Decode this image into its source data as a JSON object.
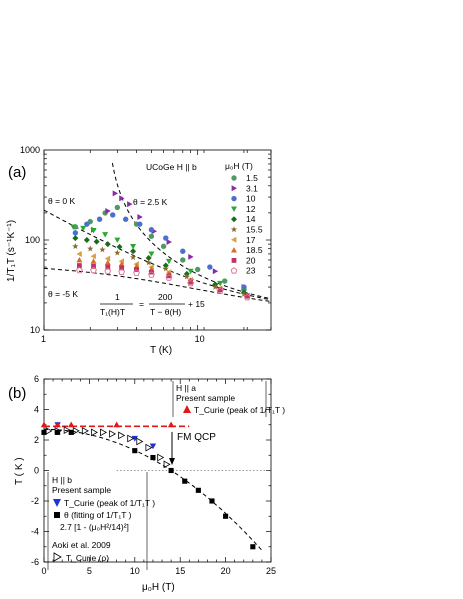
{
  "chart_data": [
    {
      "type": "scatter",
      "panel_label": "(a)",
      "title": "UCoGe  H || b",
      "xlabel": "T (K)",
      "ylabel": "1/T₁T (s⁻¹K⁻¹)",
      "xscale": "log",
      "yscale": "log",
      "xlim": [
        1,
        30
      ],
      "ylim": [
        10,
        1000
      ],
      "x_ticks": [
        "1",
        "10"
      ],
      "y_ticks": [
        "10",
        "100",
        "1000"
      ],
      "legend_title": "μ₀H (T)",
      "legend_position": "top-right",
      "formula": {
        "lhs": "1",
        "lhs_den": "T₁(H)T",
        "rhs_num": "200",
        "rhs_den": "T − θ(H)",
        "tail": "+ 15"
      },
      "annotations": [
        "θ = 0 K",
        "θ = 2.5 K",
        "θ = -5 K"
      ],
      "fit_curves": [
        {
          "theta": 0,
          "label": "θ = 0 K"
        },
        {
          "theta": 2.5,
          "label": "θ = 2.5 K"
        },
        {
          "theta": -5,
          "label": "θ = -5 K"
        }
      ],
      "series": [
        {
          "name": "1.5",
          "marker": "circle",
          "color": "#4f9a63",
          "points": [
            [
              1.6,
              140
            ],
            [
              2.0,
              160
            ],
            [
              2.5,
              200
            ],
            [
              3.0,
              230
            ],
            [
              4,
              150
            ],
            [
              5,
              110
            ],
            [
              6,
              85
            ],
            [
              8,
              60
            ],
            [
              10,
              47
            ],
            [
              15,
              35
            ],
            [
              20,
              28
            ]
          ]
        },
        {
          "name": "3.1",
          "marker": "tri-right",
          "color": "#8a2aa8",
          "points": [
            [
              2.1,
              130
            ],
            [
              2.6,
              210
            ],
            [
              2.9,
              330
            ],
            [
              3.2,
              290
            ],
            [
              3.6,
              250
            ],
            [
              4.2,
              180
            ],
            [
              5.2,
              125
            ],
            [
              6.5,
              95
            ],
            [
              9,
              65
            ],
            [
              13,
              45
            ],
            [
              20,
              30
            ]
          ]
        },
        {
          "name": "10",
          "marker": "circle",
          "color": "#4a6fd0",
          "points": [
            [
              1.6,
              120
            ],
            [
              1.9,
              150
            ],
            [
              2.3,
              170
            ],
            [
              2.8,
              190
            ],
            [
              3.4,
              170
            ],
            [
              4.2,
              150
            ],
            [
              5,
              130
            ],
            [
              6.2,
              105
            ],
            [
              8,
              75
            ],
            [
              12,
              50
            ],
            [
              20,
              30
            ]
          ]
        },
        {
          "name": "12",
          "marker": "tri-down",
          "color": "#2aa830",
          "points": [
            [
              1.55,
              140
            ],
            [
              1.8,
              135
            ],
            [
              2.1,
              128
            ],
            [
              2.5,
              115
            ],
            [
              3,
              100
            ],
            [
              3.8,
              85
            ],
            [
              5,
              70
            ],
            [
              6.5,
              58
            ],
            [
              9,
              45
            ],
            [
              14,
              33
            ],
            [
              20,
              27
            ]
          ]
        },
        {
          "name": "14",
          "marker": "diamond",
          "color": "#1a6b1a",
          "points": [
            [
              1.6,
              105
            ],
            [
              1.9,
              100
            ],
            [
              2.2,
              96
            ],
            [
              2.6,
              90
            ],
            [
              3.1,
              84
            ],
            [
              3.8,
              75
            ],
            [
              4.8,
              63
            ],
            [
              6.2,
              52
            ],
            [
              8.5,
              42
            ],
            [
              13,
              32
            ],
            [
              20,
              26
            ]
          ]
        },
        {
          "name": "15.5",
          "marker": "star",
          "color": "#8a6a2a",
          "points": [
            [
              1.6,
              85
            ],
            [
              2.0,
              80
            ],
            [
              2.4,
              78
            ],
            [
              3.0,
              72
            ],
            [
              3.8,
              64
            ],
            [
              4.8,
              56
            ],
            [
              6.2,
              48
            ],
            [
              8.5,
              39
            ],
            [
              13,
              30
            ],
            [
              20,
              25
            ]
          ]
        },
        {
          "name": "17",
          "marker": "tri-left",
          "color": "#d8a040",
          "points": [
            [
              1.7,
              70
            ],
            [
              2.1,
              66
            ],
            [
              2.6,
              62
            ],
            [
              3.2,
              58
            ],
            [
              4.0,
              54
            ],
            [
              5,
              50
            ],
            [
              6.5,
              44
            ],
            [
              9,
              36
            ],
            [
              14,
              29
            ],
            [
              21,
              24
            ]
          ]
        },
        {
          "name": "18.5",
          "marker": "triangle",
          "color": "#d86a2a",
          "points": [
            [
              1.7,
              60
            ],
            [
              2.1,
              58
            ],
            [
              2.6,
              56
            ],
            [
              3.2,
              54
            ],
            [
              4,
              51
            ],
            [
              5,
              47
            ],
            [
              6.5,
              42
            ],
            [
              9,
              35
            ],
            [
              14,
              28
            ],
            [
              21,
              24
            ]
          ]
        },
        {
          "name": "20",
          "marker": "square",
          "color": "#c0306a",
          "points": [
            [
              1.7,
              52
            ],
            [
              2.1,
              51
            ],
            [
              2.6,
              50
            ],
            [
              3.2,
              49
            ],
            [
              4,
              47
            ],
            [
              5,
              44
            ],
            [
              6.5,
              40
            ],
            [
              9,
              34
            ],
            [
              14,
              28
            ],
            [
              21,
              24
            ]
          ]
        },
        {
          "name": "23",
          "marker": "pentagon",
          "color": "#e07090",
          "points": [
            [
              1.7,
              46
            ],
            [
              2.1,
              46
            ],
            [
              2.6,
              45
            ],
            [
              3.2,
              44
            ],
            [
              4,
              43
            ],
            [
              5,
              41
            ],
            [
              6.5,
              38
            ],
            [
              9,
              33
            ],
            [
              14,
              27
            ],
            [
              21,
              23
            ]
          ]
        }
      ]
    },
    {
      "type": "scatter",
      "panel_label": "(b)",
      "xlabel": "μ₀H (T)",
      "ylabel": "T ( K )",
      "xlim": [
        0,
        25
      ],
      "ylim": [
        -6,
        6
      ],
      "x_ticks": [
        "0",
        "5",
        "10",
        "15",
        "20",
        "25"
      ],
      "y_ticks": [
        "-6",
        "-4",
        "-2",
        "0",
        "2",
        "4",
        "6"
      ],
      "fm_qcp_label": "FM QCP",
      "fm_qcp_H": 14,
      "fit_label": "2.7 [1 - (μ₀H²/14)²]",
      "legend_b": {
        "title": "H || b",
        "subtitle": "Present sample",
        "entry1": "T_Curie (peak of 1/T₁T )",
        "entry2": "θ (fitting of 1/T₁T )",
        "entry3": "2.7 [1 - (μ₀H²/14)²]",
        "group2_title": "Aoki et al. 2009",
        "entry4": "T_Curie (ρ)"
      },
      "legend_a": {
        "title": "H || a",
        "subtitle": "Present sample",
        "entry1": "T_Curie (peak of 1/T₁T )"
      },
      "series": [
        {
          "name": "T_Curie (peak of 1/T1T), H||b",
          "marker": "tri-down",
          "color": "#2030d8",
          "points": [
            [
              1.5,
              3.0
            ],
            [
              10,
              2.1
            ],
            [
              12,
              1.6
            ]
          ]
        },
        {
          "name": "θ (fitting of 1/T1T)",
          "marker": "square",
          "color": "#000000",
          "points": [
            [
              0,
              2.5
            ],
            [
              1.5,
              2.5
            ],
            [
              3,
              2.5
            ],
            [
              10,
              1.3
            ],
            [
              12,
              0.85
            ],
            [
              14,
              0
            ],
            [
              15.5,
              -0.7
            ],
            [
              17,
              -1.3
            ],
            [
              18.5,
              -2.0
            ],
            [
              20,
              -3.0
            ],
            [
              23,
              -5.0
            ]
          ]
        },
        {
          "name": "Aoki et al. 2009 T_Curie (ρ)",
          "marker": "tri-right-open",
          "color": "#000000",
          "points": [
            [
              0.5,
              2.6
            ],
            [
              1.5,
              2.6
            ],
            [
              2.5,
              2.65
            ],
            [
              3.5,
              2.6
            ],
            [
              4.5,
              2.6
            ],
            [
              5.5,
              2.5
            ],
            [
              6.5,
              2.5
            ],
            [
              7.5,
              2.4
            ],
            [
              8.5,
              2.3
            ],
            [
              9.5,
              2.1
            ],
            [
              10.5,
              1.9
            ],
            [
              11.5,
              1.5
            ],
            [
              12.8,
              0.85
            ],
            [
              13.5,
              0.4
            ]
          ]
        },
        {
          "name": "T_Curie (peak of 1/T1T), H||a",
          "marker": "triangle",
          "color": "#e01818",
          "points": [
            [
              0,
              3.0
            ],
            [
              1.5,
              3.0
            ],
            [
              3,
              3.0
            ],
            [
              8,
              3.0
            ],
            [
              14,
              3.0
            ]
          ]
        }
      ],
      "dashed_line_Ha": {
        "y": 2.9,
        "x": [
          0,
          16
        ]
      },
      "fit_curve": {
        "a": 2.7,
        "Hc": 14
      }
    }
  ]
}
